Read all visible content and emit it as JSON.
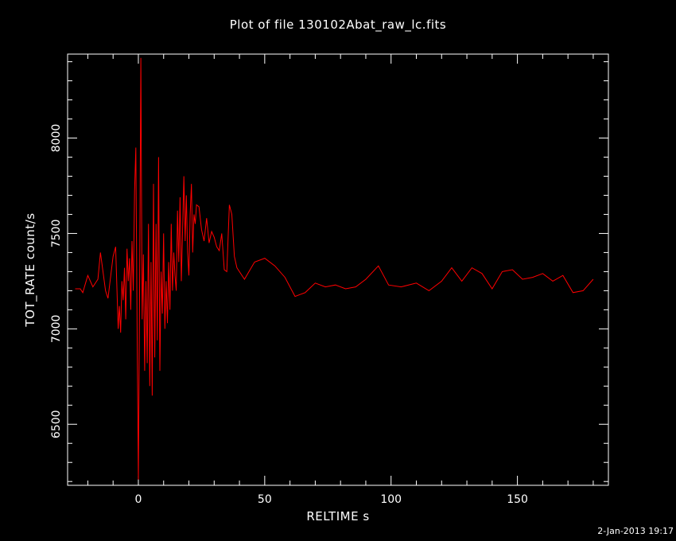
{
  "chart_data": {
    "type": "line",
    "title": "Plot of file 130102Abat_raw_lc.fits",
    "xlabel": "RELTIME   s",
    "ylabel": "TOT_RATE   count/s",
    "xlim": [
      -28,
      186
    ],
    "ylim": [
      6180,
      8440
    ],
    "xticks": [
      0,
      50,
      100,
      150
    ],
    "yticks": [
      6500,
      7000,
      7500,
      8000
    ],
    "grid": false,
    "series": [
      {
        "color": "#ff0000",
        "x": [
          -25,
          -23,
          -22,
          -20,
          -18,
          -16,
          -15,
          -14,
          -13,
          -12,
          -10,
          -9,
          -8,
          -7.5,
          -7,
          -6.5,
          -6,
          -5.5,
          -5,
          -4.5,
          -4,
          -3.5,
          -3,
          -2.5,
          -2,
          -1.5,
          -1,
          -0.5,
          0,
          0.5,
          1,
          1.5,
          2,
          2.5,
          3,
          3.5,
          4,
          4.5,
          5,
          5.5,
          6,
          6.5,
          7,
          7.5,
          8,
          8.5,
          9,
          9.5,
          10,
          10.5,
          11,
          11.5,
          12,
          12.5,
          13,
          13.5,
          14,
          14.5,
          15,
          15.5,
          16,
          16.5,
          17,
          17.5,
          18,
          18.5,
          19,
          19.5,
          20,
          20.5,
          21,
          21.5,
          22,
          22.5,
          23,
          24,
          25,
          26,
          27,
          28,
          29,
          30,
          31,
          32,
          33,
          34,
          35,
          36,
          37,
          38,
          39,
          42,
          46,
          50,
          54,
          58,
          62,
          64,
          66,
          70,
          74,
          78,
          82,
          86,
          90,
          95,
          99,
          104,
          110,
          115,
          120,
          124,
          128,
          132,
          136,
          140,
          144,
          148,
          152,
          156,
          160,
          164,
          168,
          172,
          176,
          180
        ],
        "y": [
          7210,
          7210,
          7190,
          7280,
          7220,
          7260,
          7400,
          7300,
          7200,
          7160,
          7380,
          7430,
          7000,
          7120,
          6980,
          7250,
          7150,
          7320,
          7050,
          7420,
          7250,
          7370,
          7100,
          7460,
          7200,
          7720,
          7950,
          7000,
          6210,
          7250,
          8420,
          7050,
          7390,
          6780,
          7250,
          6820,
          7550,
          6700,
          7350,
          6650,
          7760,
          6850,
          7550,
          6940,
          7900,
          6780,
          7300,
          7080,
          7500,
          7000,
          7250,
          7030,
          7350,
          7100,
          7550,
          7200,
          7400,
          7280,
          7200,
          7620,
          7350,
          7690,
          7250,
          7520,
          7800,
          7460,
          7700,
          7400,
          7280,
          7600,
          7760,
          7400,
          7600,
          7550,
          7650,
          7640,
          7520,
          7460,
          7580,
          7450,
          7510,
          7480,
          7430,
          7410,
          7500,
          7310,
          7300,
          7650,
          7600,
          7380,
          7320,
          7260,
          7350,
          7370,
          7330,
          7270,
          7170,
          7180,
          7190,
          7240,
          7220,
          7230,
          7210,
          7220,
          7260,
          7330,
          7230,
          7220,
          7240,
          7200,
          7250,
          7320,
          7250,
          7320,
          7290,
          7210,
          7300,
          7310,
          7260,
          7270,
          7290,
          7250,
          7280,
          7190,
          7200,
          7260
        ]
      }
    ]
  },
  "footer": {
    "timestamp": "2-Jan-2013 19:17"
  }
}
